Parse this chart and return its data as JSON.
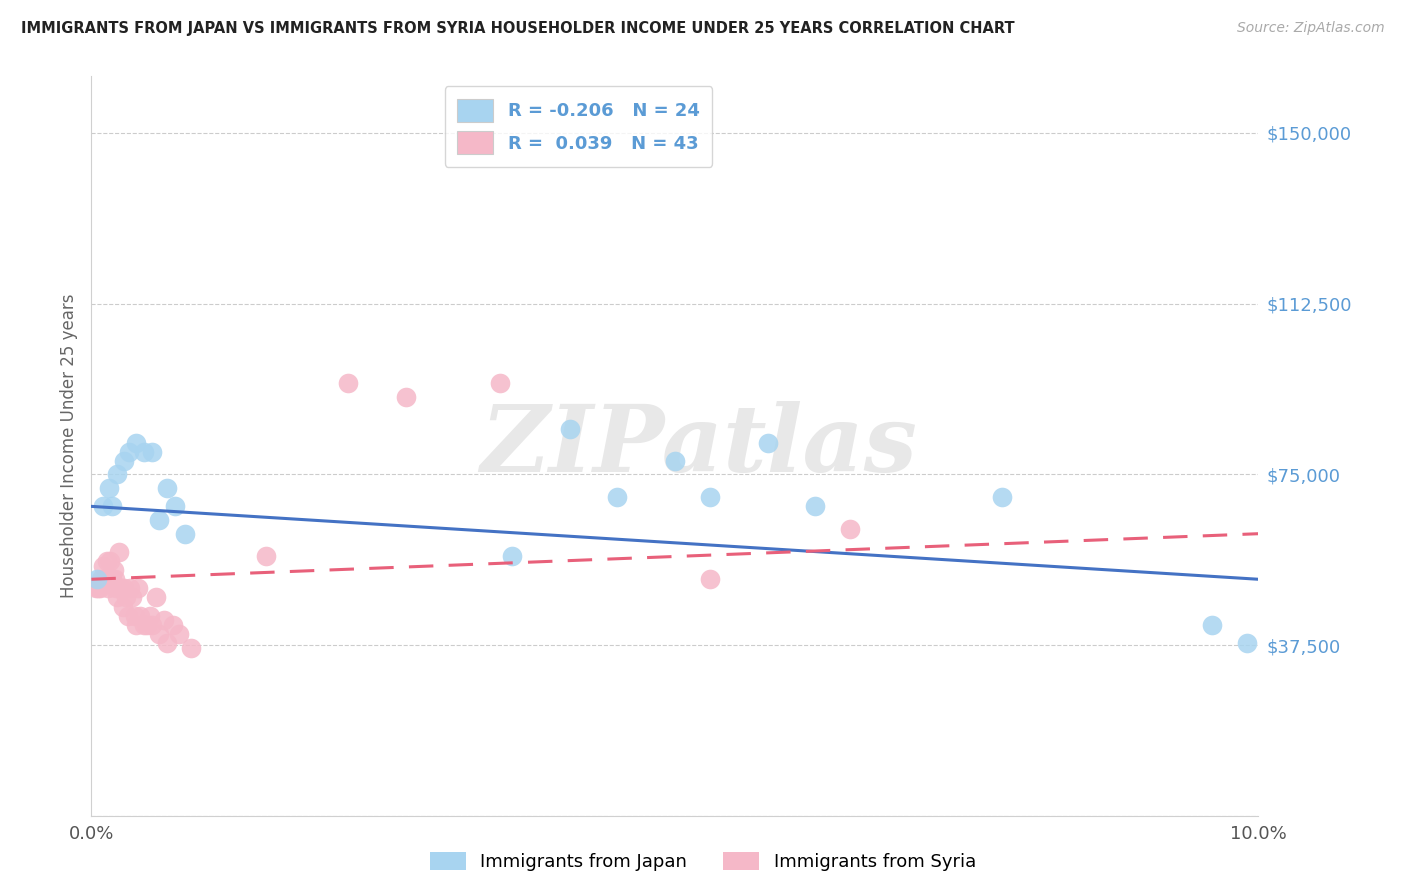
{
  "title": "IMMIGRANTS FROM JAPAN VS IMMIGRANTS FROM SYRIA HOUSEHOLDER INCOME UNDER 25 YEARS CORRELATION CHART",
  "source": "Source: ZipAtlas.com",
  "ylabel": "Householder Income Under 25 years",
  "xlim": [
    0.0,
    10.0
  ],
  "ylim": [
    0,
    162500
  ],
  "yticks": [
    0,
    37500,
    75000,
    112500,
    150000
  ],
  "ytick_labels": [
    "",
    "$37,500",
    "$75,000",
    "$112,500",
    "$150,000"
  ],
  "background_color": "#ffffff",
  "watermark": "ZIPatlas",
  "japan_color": "#a8d4f0",
  "syria_color": "#f5b8c8",
  "japan_line_color": "#4472c4",
  "syria_line_color": "#e8607a",
  "japan_R": -0.206,
  "japan_N": 24,
  "syria_R": 0.039,
  "syria_N": 43,
  "japan_x": [
    0.05,
    0.1,
    0.15,
    0.18,
    0.22,
    0.28,
    0.32,
    0.38,
    0.45,
    0.52,
    0.58,
    0.65,
    0.72,
    0.8,
    3.6,
    4.1,
    4.5,
    5.0,
    5.3,
    5.8,
    6.2,
    7.8,
    9.6,
    9.9
  ],
  "japan_y": [
    52000,
    68000,
    72000,
    68000,
    75000,
    78000,
    80000,
    82000,
    80000,
    80000,
    65000,
    72000,
    68000,
    62000,
    57000,
    85000,
    70000,
    78000,
    70000,
    82000,
    68000,
    70000,
    42000,
    38000
  ],
  "syria_x": [
    0.04,
    0.06,
    0.07,
    0.08,
    0.1,
    0.11,
    0.13,
    0.14,
    0.16,
    0.18,
    0.19,
    0.2,
    0.21,
    0.22,
    0.24,
    0.25,
    0.27,
    0.28,
    0.3,
    0.31,
    0.33,
    0.35,
    0.37,
    0.38,
    0.4,
    0.42,
    0.45,
    0.48,
    0.5,
    0.52,
    0.55,
    0.58,
    0.62,
    0.65,
    0.7,
    0.75,
    0.85,
    1.5,
    2.2,
    2.7,
    3.5,
    5.3,
    6.5
  ],
  "syria_y": [
    50000,
    50000,
    50000,
    52000,
    55000,
    52000,
    56000,
    50000,
    56000,
    52000,
    54000,
    52000,
    50000,
    48000,
    58000,
    50000,
    46000,
    50000,
    48000,
    44000,
    50000,
    48000,
    44000,
    42000,
    50000,
    44000,
    42000,
    42000,
    44000,
    42000,
    48000,
    40000,
    43000,
    38000,
    42000,
    40000,
    37000,
    57000,
    95000,
    92000,
    95000,
    52000,
    63000
  ],
  "legend_japan_label": "Immigrants from Japan",
  "legend_syria_label": "Immigrants from Syria",
  "japan_trend_x0": 0.0,
  "japan_trend_y0": 68000,
  "japan_trend_x1": 10.0,
  "japan_trend_y1": 52000,
  "syria_trend_x0": 0.0,
  "syria_trend_y0": 52000,
  "syria_trend_x1": 10.0,
  "syria_trend_y1": 62000
}
